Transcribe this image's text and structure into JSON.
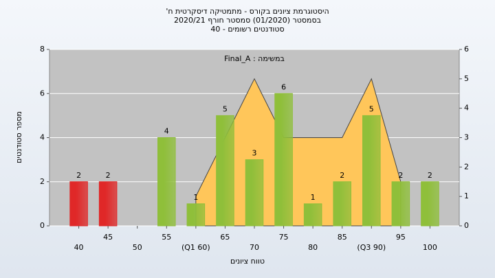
{
  "chart_data": {
    "type": "bar",
    "title": [
      "היסטוגרמת ציונים בקורס - מתמטיקה דיסקרטית ח'",
      "בסמסטר (01/2020) סמסטר חורף 2020/21",
      "סטודנטים רשומים - 40"
    ],
    "annotation": "במשימה : Final_A",
    "x_label": "טווח ציונים",
    "y_label": "מספר סטודנטים",
    "categories": [
      "40",
      "45",
      "50",
      "55",
      "(Q1 60)",
      "65",
      "70",
      "75",
      "80",
      "85",
      "(Q3 90)",
      "95",
      "100"
    ],
    "values": [
      2,
      2,
      null,
      4,
      1,
      5,
      3,
      6,
      1,
      2,
      5,
      2,
      2
    ],
    "colors": [
      "#e02828",
      "#e02828",
      "#8fbf3a",
      "#8fbf3a",
      "#8fbf3a",
      "#8fbf3a",
      "#8fbf3a",
      "#8fbf3a",
      "#8fbf3a",
      "#8fbf3a",
      "#8fbf3a",
      "#8fbf3a",
      "#8fbf3a"
    ],
    "area": {
      "axis": "y2",
      "color": "#ffc65a",
      "values": [
        null,
        null,
        null,
        null,
        1,
        3,
        5,
        3,
        3,
        3,
        5,
        1.5,
        null
      ]
    },
    "ylim": [
      0,
      8
    ],
    "yticks": [
      0,
      2,
      4,
      6,
      8
    ],
    "y2lim": [
      0,
      6
    ],
    "y2ticks": [
      0,
      1,
      2,
      3,
      4,
      5,
      6
    ],
    "grid": true
  }
}
